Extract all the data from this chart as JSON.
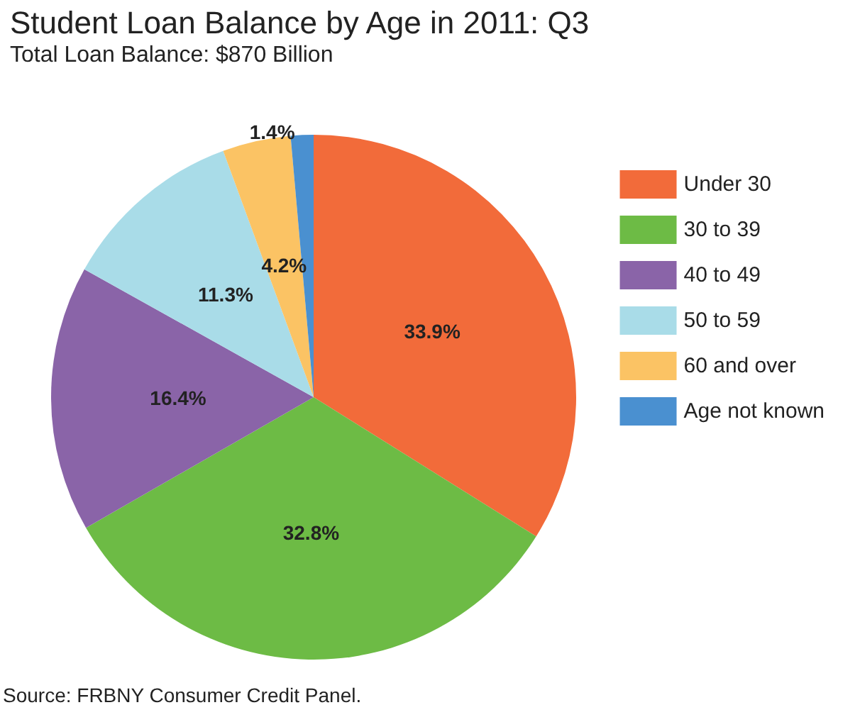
{
  "chart_data": {
    "type": "pie",
    "title": "Student Loan Balance by Age in 2011: Q3",
    "subtitle": "Total Loan Balance: $870 Billion",
    "categories": [
      "Under 30",
      "30 to 39",
      "40 to 49",
      "50 to 59",
      "60 and over",
      "Age not known"
    ],
    "values": [
      33.9,
      32.8,
      16.4,
      11.3,
      4.2,
      1.4
    ],
    "value_labels": [
      "33.9%",
      "32.8%",
      "16.4%",
      "11.3%",
      "4.2%",
      "1.4%"
    ],
    "colors": [
      "#f26b3a",
      "#6dbb45",
      "#8a64a8",
      "#a9dce8",
      "#fbc364",
      "#4a90d0"
    ],
    "legend": "right",
    "annotations": [
      "Source: FRBNY Consumer Credit Panel."
    ]
  }
}
